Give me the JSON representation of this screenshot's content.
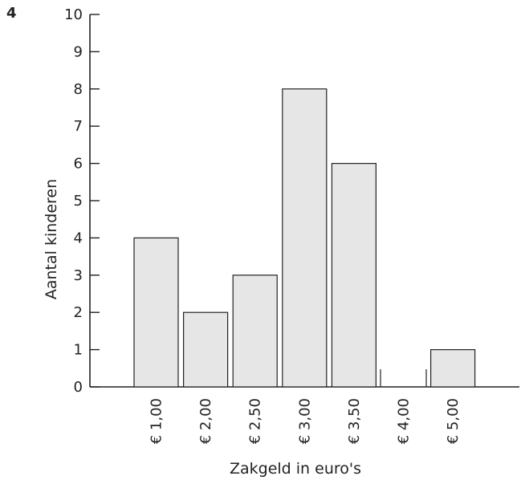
{
  "figure_number": "4",
  "chart_data": {
    "type": "bar",
    "title": "",
    "xlabel": "Zakgeld in euro's",
    "ylabel": "Aantal kinderen",
    "ylim": [
      0,
      10
    ],
    "yticks": [
      "0",
      "1",
      "2",
      "3",
      "4",
      "5",
      "6",
      "7",
      "8",
      "9",
      "10"
    ],
    "categories": [
      "€ 1,00",
      "€ 2,00",
      "€ 2,50",
      "€ 3,00",
      "€ 3,50",
      "€ 4,00",
      "€ 5,00"
    ],
    "values": [
      4,
      2,
      3,
      8,
      6,
      0,
      1
    ],
    "bar_color": "#e6e6e6",
    "grid": false
  }
}
